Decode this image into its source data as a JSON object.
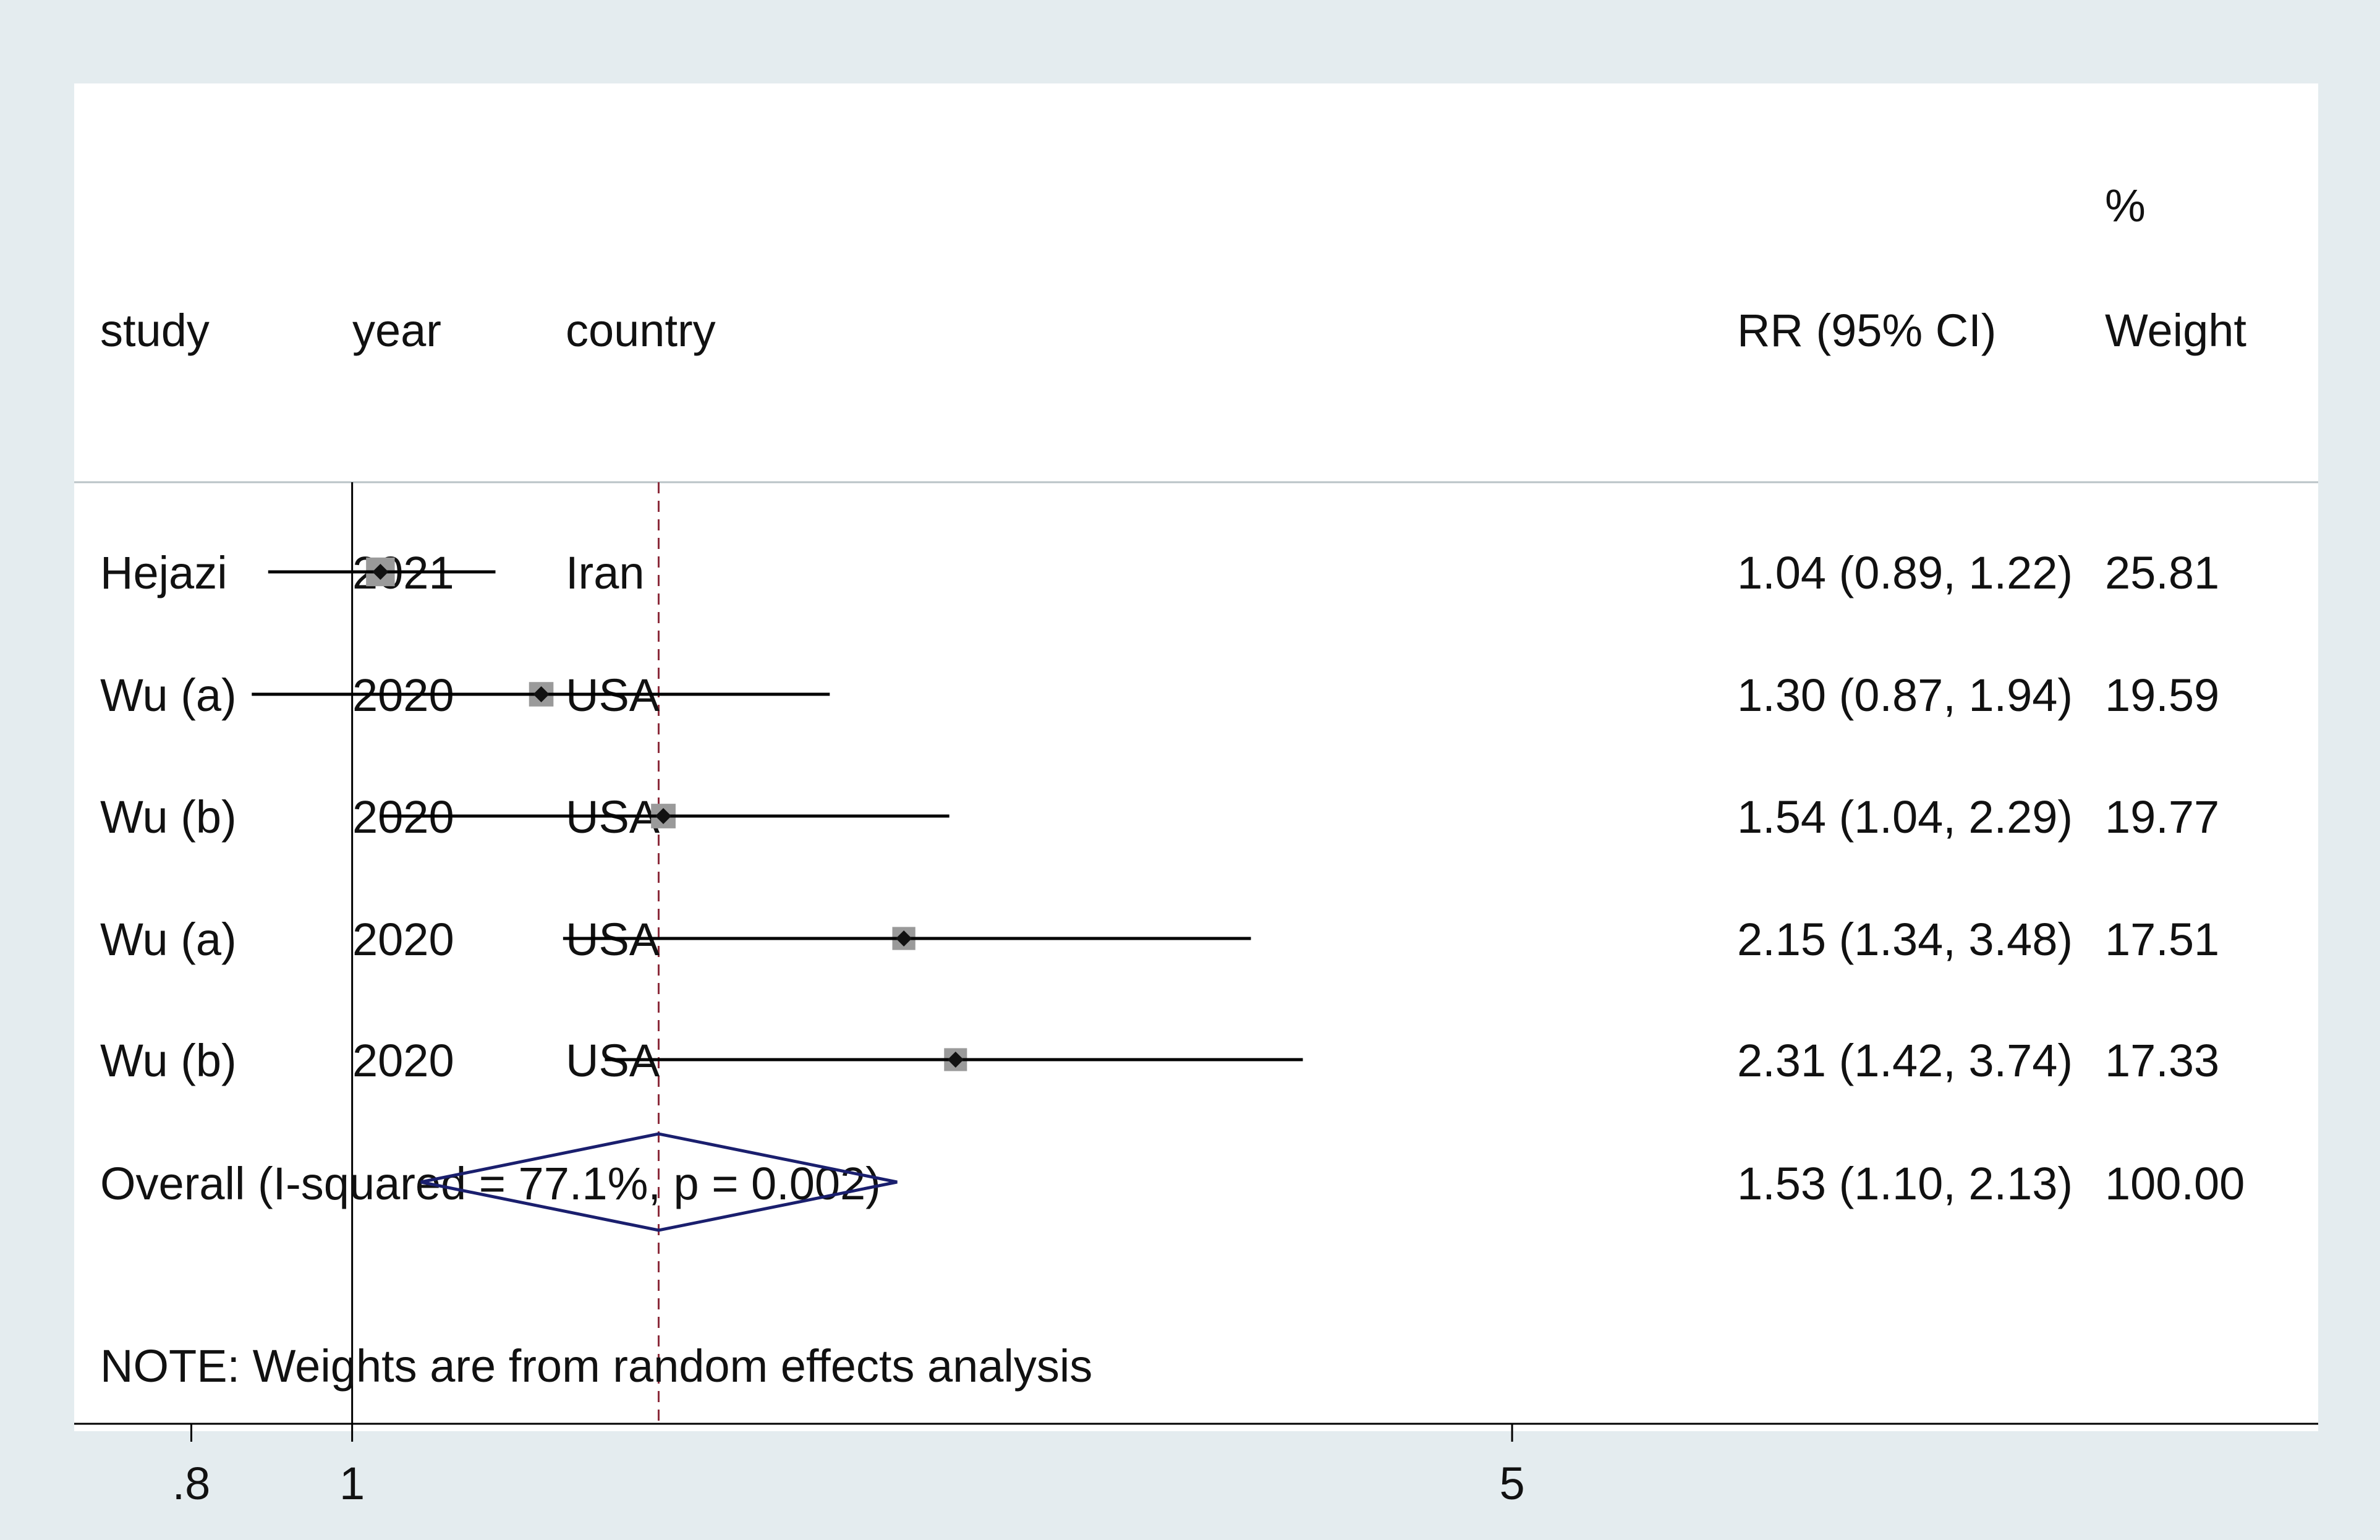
{
  "chart_data": {
    "type": "forest",
    "effect_measure": "RR",
    "x_scale": "log",
    "xlim": [
      0.68,
      15.3
    ],
    "x_ticks": [
      {
        "value": 0.8,
        "label": ".8"
      },
      {
        "value": 1,
        "label": "1"
      },
      {
        "value": 5,
        "label": "5"
      }
    ],
    "null_line": 1,
    "pooled_line": 1.53,
    "headers": {
      "study": "study",
      "year": "year",
      "country": "country",
      "ci": "RR (95% CI)",
      "weight_top": "%",
      "weight_bottom": "Weight"
    },
    "studies": [
      {
        "study": "Hejazi",
        "year": "2021",
        "country": "Iran",
        "rr": 1.04,
        "lo": 0.89,
        "hi": 1.22,
        "ci_text": "1.04 (0.89, 1.22)",
        "weight": 25.81,
        "weight_text": "25.81"
      },
      {
        "study": "Wu (a)",
        "year": "2020",
        "country": "USA",
        "rr": 1.3,
        "lo": 0.87,
        "hi": 1.94,
        "ci_text": "1.30 (0.87, 1.94)",
        "weight": 19.59,
        "weight_text": "19.59"
      },
      {
        "study": "Wu (b)",
        "year": "2020",
        "country": "USA",
        "rr": 1.54,
        "lo": 1.04,
        "hi": 2.29,
        "ci_text": "1.54 (1.04, 2.29)",
        "weight": 19.77,
        "weight_text": "19.77"
      },
      {
        "study": "Wu (a)",
        "year": "2020",
        "country": "USA",
        "rr": 2.15,
        "lo": 1.34,
        "hi": 3.48,
        "ci_text": "2.15 (1.34, 3.48)",
        "weight": 17.51,
        "weight_text": "17.51"
      },
      {
        "study": "Wu (b)",
        "year": "2020",
        "country": "USA",
        "rr": 2.31,
        "lo": 1.42,
        "hi": 3.74,
        "ci_text": "2.31 (1.42, 3.74)",
        "weight": 17.33,
        "weight_text": "17.33"
      }
    ],
    "overall": {
      "label": "Overall  (I-squared = 77.1%, p = 0.002)",
      "rr": 1.53,
      "lo": 1.1,
      "hi": 2.13,
      "ci_text": "1.53 (1.10, 2.13)",
      "weight_text": "100.00"
    },
    "note": "NOTE: Weights are from random effects analysis",
    "colors": {
      "text": "#111111",
      "ci_line": "#000000",
      "point": "#111111",
      "weight_box": "#9a9a9a",
      "diamond": "#1a1f6e",
      "pooled_line": "#8b2a3a",
      "null_line": "#000000",
      "panel": "#ffffff",
      "background": "#e4ecef"
    }
  }
}
